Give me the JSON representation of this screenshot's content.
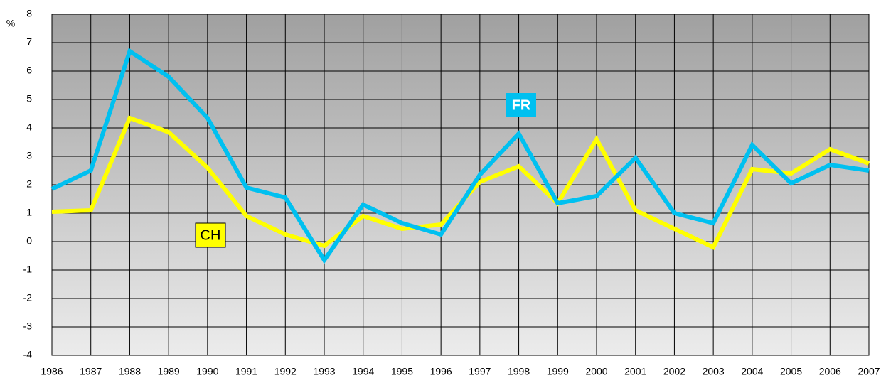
{
  "chart_data": {
    "type": "line",
    "ylabel": "%",
    "x": [
      1986,
      1987,
      1988,
      1989,
      1990,
      1991,
      1992,
      1993,
      1994,
      1995,
      1996,
      1997,
      1998,
      1999,
      2000,
      2001,
      2002,
      2003,
      2004,
      2005,
      2006,
      2007
    ],
    "series": [
      {
        "name": "FR",
        "color": "#00c0f0",
        "values": [
          1.85,
          2.5,
          6.7,
          5.8,
          4.35,
          1.9,
          1.55,
          -0.65,
          1.3,
          0.65,
          0.25,
          2.35,
          3.8,
          1.35,
          1.6,
          2.95,
          1.0,
          0.65,
          3.4,
          2.05,
          2.7,
          2.5
        ]
      },
      {
        "name": "CH",
        "color": "#ffff00",
        "values": [
          1.05,
          1.1,
          4.35,
          3.85,
          2.6,
          0.9,
          0.25,
          -0.15,
          0.9,
          0.45,
          0.6,
          2.1,
          2.65,
          1.35,
          3.6,
          1.1,
          0.45,
          -0.2,
          2.55,
          2.4,
          3.25,
          2.75
        ]
      }
    ],
    "xlim": [
      1986,
      2007
    ],
    "xticks": [
      1986,
      1987,
      1988,
      1989,
      1990,
      1991,
      1992,
      1993,
      1994,
      1995,
      1996,
      1997,
      1998,
      1999,
      2000,
      2001,
      2002,
      2003,
      2004,
      2005,
      2006,
      2007
    ],
    "ylim": [
      -4,
      8
    ],
    "yticks": [
      -4,
      -3,
      -2,
      -1,
      0,
      1,
      2,
      3,
      4,
      5,
      6,
      7,
      8
    ],
    "grid": true
  }
}
